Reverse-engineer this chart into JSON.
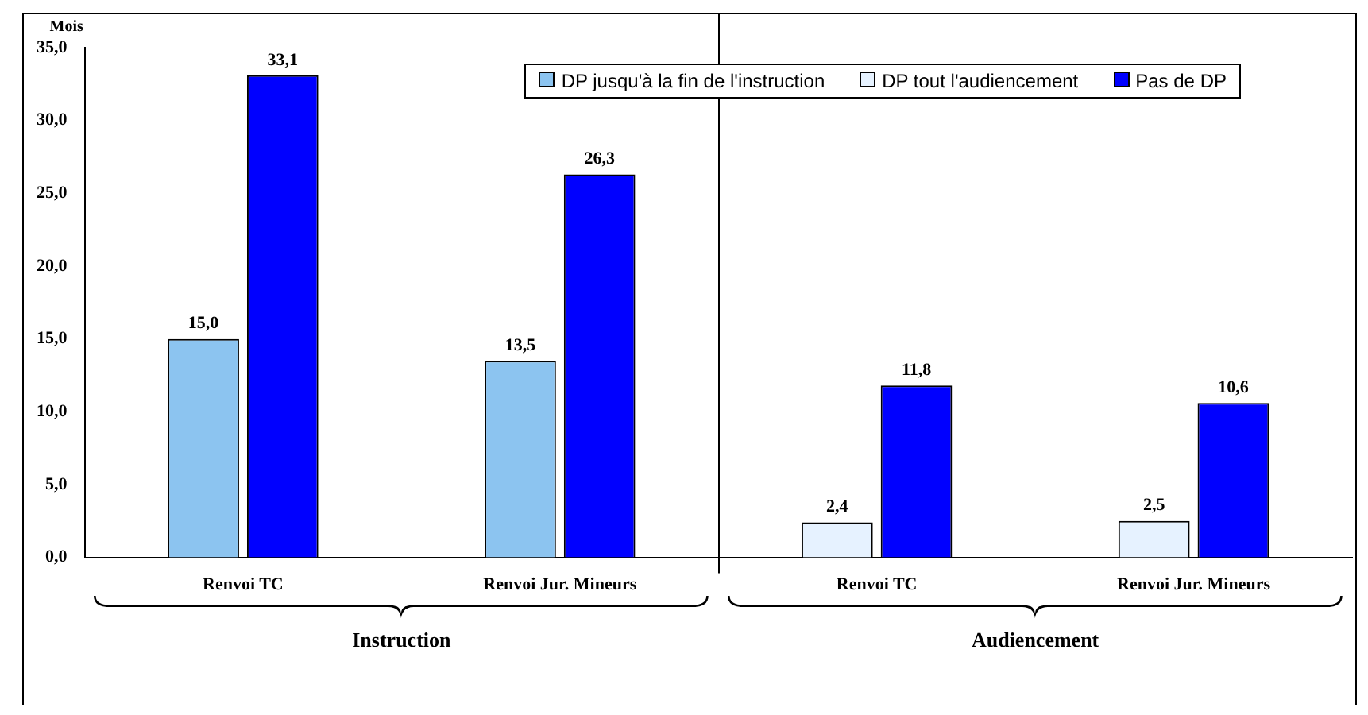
{
  "chart_data": {
    "type": "bar",
    "ylabel": "Mois",
    "categories": [
      "Renvoi TC",
      "Renvoi Jur. Mineurs",
      "Renvoi TC",
      "Renvoi Jur. Mineurs"
    ],
    "series": [
      {
        "name": "DP jusqu'à la fin de l'instruction",
        "color": "#8cc4f0",
        "values": [
          15.0,
          13.5,
          null,
          null
        ],
        "value_labels": [
          "15,0",
          "13,5",
          null,
          null
        ]
      },
      {
        "name": "DP tout l'audiencement",
        "color": "#e6f2ff",
        "values": [
          null,
          null,
          2.4,
          2.5
        ],
        "value_labels": [
          null,
          null,
          "2,4",
          "2,5"
        ]
      },
      {
        "name": "Pas de DP",
        "color": "#0000ff",
        "values": [
          33.1,
          26.3,
          11.8,
          10.6
        ],
        "value_labels": [
          "33,1",
          "26,3",
          "11,8",
          "10,6"
        ]
      }
    ],
    "ylim": [
      0,
      35
    ],
    "yticks": [
      {
        "value": 0,
        "label": "0,0"
      },
      {
        "value": 5,
        "label": "5,0"
      },
      {
        "value": 10,
        "label": "10,0"
      },
      {
        "value": 15,
        "label": "15,0"
      },
      {
        "value": 20,
        "label": "20,0"
      },
      {
        "value": 25,
        "label": "25,0"
      },
      {
        "value": 30,
        "label": "30,0"
      },
      {
        "value": 35,
        "label": "35,0"
      }
    ],
    "annotations": [
      "Instruction",
      "Audiencement"
    ],
    "legend": "top right",
    "grid": false
  }
}
